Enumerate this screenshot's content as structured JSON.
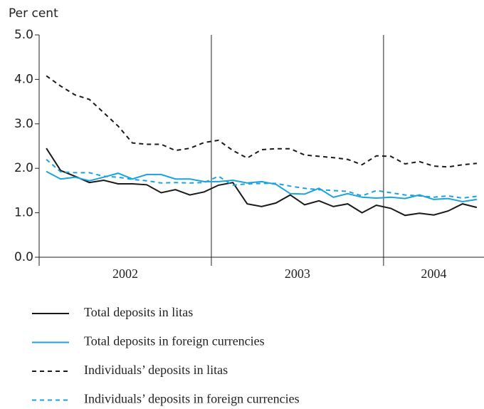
{
  "chart_data": {
    "type": "line",
    "ylabel": "Per cent",
    "categories": [
      null,
      null,
      null,
      null,
      null,
      null,
      null,
      null,
      null,
      null,
      null,
      null,
      null,
      null,
      null,
      null,
      null,
      null,
      null,
      null,
      null,
      null,
      null,
      null,
      null,
      null,
      null,
      null,
      null,
      null,
      null
    ],
    "xgroups": [
      {
        "label": "2002",
        "start": 0,
        "end": 12
      },
      {
        "label": "2003",
        "start": 12,
        "end": 24
      },
      {
        "label": "2004",
        "start": 24,
        "end": 31
      }
    ],
    "ylim": [
      0,
      5
    ],
    "yticks": [
      {
        "value": 0,
        "label": "0.0"
      },
      {
        "value": 1,
        "label": "1.0"
      },
      {
        "value": 2,
        "label": "2.0"
      },
      {
        "value": 3,
        "label": "3.0"
      },
      {
        "value": 4,
        "label": "4.0"
      },
      {
        "value": 5,
        "label": "5.0"
      }
    ],
    "grid": false,
    "legend": "bottom",
    "series": [
      {
        "name": "Total deposits in litas",
        "color": "#1a1a1a",
        "style": "solid",
        "values": [
          2.45,
          1.95,
          1.82,
          1.68,
          1.73,
          1.65,
          1.65,
          1.63,
          1.45,
          1.52,
          1.4,
          1.47,
          1.62,
          1.68,
          1.2,
          1.14,
          1.22,
          1.4,
          1.18,
          1.27,
          1.14,
          1.2,
          1.0,
          1.17,
          1.1,
          0.94,
          0.99,
          0.95,
          1.04,
          1.2,
          1.12
        ]
      },
      {
        "name": "Total deposits in foreign currencies",
        "color": "#1ba3dc",
        "style": "solid",
        "values": [
          1.93,
          1.76,
          1.8,
          1.72,
          1.8,
          1.89,
          1.76,
          1.86,
          1.86,
          1.76,
          1.76,
          1.7,
          1.7,
          1.73,
          1.67,
          1.7,
          1.64,
          1.43,
          1.42,
          1.55,
          1.35,
          1.43,
          1.35,
          1.33,
          1.35,
          1.32,
          1.4,
          1.3,
          1.32,
          1.25,
          1.3
        ]
      },
      {
        "name": "Individuals’ deposits in litas",
        "color": "#1a1a1a",
        "style": "dashed",
        "values": [
          4.08,
          3.85,
          3.65,
          3.55,
          3.25,
          2.95,
          2.57,
          2.54,
          2.54,
          2.4,
          2.45,
          2.58,
          2.63,
          2.4,
          2.23,
          2.42,
          2.44,
          2.44,
          2.3,
          2.27,
          2.24,
          2.2,
          2.08,
          2.28,
          2.27,
          2.1,
          2.15,
          2.05,
          2.03,
          2.08,
          2.11
        ]
      },
      {
        "name": "Individuals’ deposits in foreign currencies",
        "color": "#1ba3dc",
        "style": "dashed",
        "values": [
          2.2,
          1.92,
          1.9,
          1.9,
          1.82,
          1.8,
          1.75,
          1.72,
          1.67,
          1.68,
          1.67,
          1.68,
          1.82,
          1.62,
          1.65,
          1.66,
          1.66,
          1.6,
          1.55,
          1.52,
          1.5,
          1.48,
          1.38,
          1.5,
          1.45,
          1.4,
          1.38,
          1.35,
          1.38,
          1.33,
          1.37
        ]
      }
    ]
  }
}
